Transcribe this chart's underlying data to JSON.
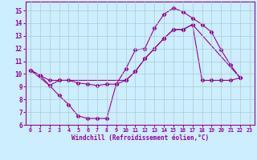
{
  "xlabel": "Windchill (Refroidissement éolien,°C)",
  "bg_color": "#cceeff",
  "grid_color": "#aacccc",
  "line_color": "#990099",
  "xlim": [
    -0.5,
    23.5
  ],
  "ylim": [
    6,
    15.7
  ],
  "yticks": [
    6,
    7,
    8,
    9,
    10,
    11,
    12,
    13,
    14,
    15
  ],
  "xticks": [
    0,
    1,
    2,
    3,
    4,
    5,
    6,
    7,
    8,
    9,
    10,
    11,
    12,
    13,
    14,
    15,
    16,
    17,
    18,
    19,
    20,
    21,
    22,
    23
  ],
  "series1_x": [
    0,
    1,
    2,
    3,
    4,
    5,
    6,
    7,
    8,
    9,
    10,
    11,
    12,
    13,
    14,
    15,
    16,
    17,
    18,
    19,
    20,
    21,
    22
  ],
  "series1_y": [
    10.3,
    9.9,
    9.1,
    8.3,
    7.6,
    6.7,
    6.5,
    6.5,
    6.5,
    9.2,
    10.4,
    11.9,
    12.0,
    13.6,
    14.7,
    15.2,
    14.9,
    14.4,
    13.9,
    13.3,
    11.9,
    10.7,
    9.7
  ],
  "series2_x": [
    0,
    1,
    2,
    3,
    4,
    5,
    6,
    7,
    8,
    9,
    10,
    11,
    12,
    13,
    14,
    15,
    16,
    17,
    18,
    19,
    20,
    21,
    22
  ],
  "series2_y": [
    10.3,
    9.9,
    9.5,
    9.5,
    9.5,
    9.3,
    9.2,
    9.1,
    9.2,
    9.2,
    9.5,
    10.2,
    11.2,
    12.0,
    12.8,
    13.5,
    13.5,
    13.9,
    9.5,
    9.5,
    9.5,
    9.5,
    9.7
  ],
  "series3_x": [
    0,
    2,
    3,
    10,
    11,
    12,
    13,
    14,
    15,
    16,
    17,
    22
  ],
  "series3_y": [
    10.3,
    9.1,
    9.5,
    9.5,
    10.2,
    11.2,
    12.0,
    12.8,
    13.5,
    13.5,
    13.9,
    9.7
  ]
}
